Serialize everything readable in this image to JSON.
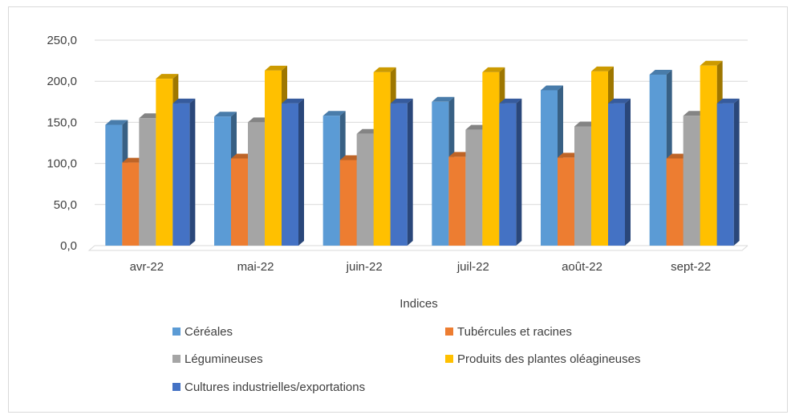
{
  "chart_data": {
    "type": "bar",
    "title": "",
    "xlabel": "Indices",
    "ylabel": "",
    "ylim": [
      0,
      250
    ],
    "yticks": [
      "0,0",
      "50,0",
      "100,0",
      "150,0",
      "200,0",
      "250,0"
    ],
    "grid": true,
    "legend_position": "bottom",
    "categories": [
      "avr-22",
      "mai-22",
      "juin-22",
      "juil-22",
      "août-22",
      "sept-22"
    ],
    "series": [
      {
        "name": "Céréales",
        "color": "#5b9bd5",
        "values": [
          147,
          157,
          158,
          175,
          189,
          208
        ]
      },
      {
        "name": "Tubércules et racines",
        "color": "#ed7d31",
        "values": [
          101,
          106,
          104,
          108,
          107,
          106
        ]
      },
      {
        "name": "Légumineuses",
        "color": "#a5a5a5",
        "values": [
          155,
          150,
          136,
          141,
          145,
          158
        ]
      },
      {
        "name": "Produits des plantes oléagineuses",
        "color": "#ffc000",
        "values": [
          203,
          213,
          211,
          211,
          212,
          219
        ]
      },
      {
        "name": "Cultures industrielles/exportations",
        "color": "#4472c4",
        "values": [
          173,
          173,
          173,
          173,
          173,
          173
        ]
      }
    ]
  }
}
